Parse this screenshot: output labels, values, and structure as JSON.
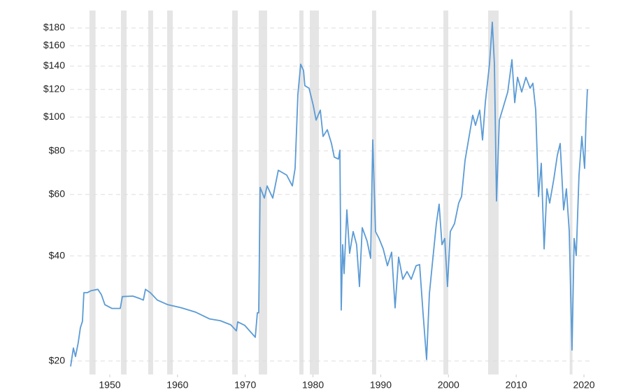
{
  "chart_data": {
    "type": "line",
    "log_y": true,
    "grid": true,
    "band_color": "#e5e5e5",
    "bands": [
      [
        1947.0,
        1947.9
      ],
      [
        1951.65,
        1952.48
      ],
      [
        1955.68,
        1956.4
      ],
      [
        1958.47,
        1959.3
      ],
      [
        1968.07,
        1968.9
      ],
      [
        1971.99,
        1973.23
      ],
      [
        1977.98,
        1978.6
      ],
      [
        1979.53,
        1980.87
      ],
      [
        1988.72,
        1989.33
      ],
      [
        1999.25,
        1999.97
      ],
      [
        2005.85,
        2007.4
      ],
      [
        2017.9,
        2018.3
      ]
    ],
    "xlim": [
      1944.12,
      2021.03
    ],
    "xticks": [
      1950,
      1960,
      1970,
      1980,
      1990,
      2000,
      2010,
      2020
    ],
    "ylim": [
      18.3,
      202
    ],
    "yticks": [
      {
        "value": 20,
        "label": "$20"
      },
      {
        "value": 40,
        "label": "$40"
      },
      {
        "value": 60,
        "label": "$60"
      },
      {
        "value": 80,
        "label": "$80"
      },
      {
        "value": 100,
        "label": "$100"
      },
      {
        "value": 120,
        "label": "$120"
      },
      {
        "value": 140,
        "label": "$140"
      },
      {
        "value": 160,
        "label": "$160"
      },
      {
        "value": 180,
        "label": "$180"
      }
    ],
    "x": [
      1944.22,
      1944.63,
      1944.94,
      1945.35,
      1945.66,
      1945.97,
      1946.18,
      1946.7,
      1947.21,
      1948.24,
      1948.76,
      1949.28,
      1950.31,
      1951.55,
      1951.86,
      1953.41,
      1954.44,
      1954.96,
      1955.27,
      1955.99,
      1957.02,
      1958.57,
      1960.63,
      1962.7,
      1964.76,
      1966.31,
      1967.86,
      1968.69,
      1968.89,
      1969.93,
      1971.48,
      1971.79,
      1971.99,
      1972.2,
      1972.82,
      1973.23,
      1974.06,
      1974.88,
      1976.12,
      1976.95,
      1977.36,
      1977.77,
      1978.18,
      1978.6,
      1978.8,
      1979.42,
      1980.04,
      1980.46,
      1981.08,
      1981.49,
      1982.11,
      1982.73,
      1983.14,
      1983.76,
      1983.97,
      1984.17,
      1984.38,
      1984.59,
      1985.0,
      1985.41,
      1985.93,
      1986.44,
      1986.86,
      1987.27,
      1987.99,
      1988.51,
      1988.82,
      1989.23,
      1989.75,
      1990.37,
      1990.99,
      1991.61,
      1992.12,
      1992.64,
      1993.26,
      1993.88,
      1994.5,
      1995.22,
      1995.74,
      1996.25,
      1996.77,
      1997.18,
      1997.59,
      1998.21,
      1998.62,
      1999.04,
      1999.45,
      1999.86,
      2000.27,
      2000.89,
      2001.51,
      2001.93,
      2002.45,
      2002.96,
      2003.58,
      2003.99,
      2004.61,
      2005.03,
      2005.44,
      2006.06,
      2006.47,
      2006.78,
      2007.09,
      2007.51,
      2008.13,
      2008.75,
      2009.37,
      2009.78,
      2010.2,
      2010.81,
      2011.43,
      2012.05,
      2012.46,
      2012.88,
      2013.29,
      2013.7,
      2014.12,
      2014.53,
      2014.94,
      2015.56,
      2016.07,
      2016.49,
      2017.0,
      2017.41,
      2017.83,
      2018.24,
      2018.55,
      2018.86,
      2019.27,
      2019.69,
      2020.1,
      2020.31,
      2020.51
    ],
    "series": [
      {
        "color": "#5b9bd5",
        "values": [
          19.3,
          21.8,
          20.6,
          22.6,
          24.9,
          26,
          31.4,
          31.4,
          31.8,
          32.1,
          31,
          29,
          28.3,
          28.3,
          30.6,
          30.7,
          30.2,
          29.9,
          32.1,
          31.4,
          29.9,
          29,
          28.4,
          27.6,
          26.4,
          26.1,
          25.4,
          24.4,
          25.9,
          25.3,
          23.4,
          27.5,
          27.5,
          62.9,
          58.6,
          63.5,
          58.6,
          70.4,
          68.2,
          63.5,
          71.3,
          116,
          141.7,
          136,
          123,
          121,
          108,
          98,
          104.7,
          88,
          92,
          84,
          76.8,
          75.8,
          80.4,
          28,
          43.1,
          35.6,
          54.2,
          40.7,
          47,
          43.1,
          32.7,
          48.2,
          44.1,
          39.4,
          86,
          47,
          44.9,
          41.9,
          37.5,
          41,
          28.4,
          39.7,
          34.3,
          36.1,
          34.3,
          37.5,
          37.8,
          27.4,
          20.2,
          31.1,
          37.5,
          49.5,
          56.3,
          43.1,
          44.9,
          32.7,
          47,
          49.5,
          56.7,
          59.2,
          75.2,
          86,
          101.2,
          94.7,
          104.7,
          86,
          110.1,
          142,
          187,
          142,
          57.5,
          98,
          107.5,
          118,
          146,
          110,
          130,
          118,
          130,
          121,
          125,
          104.7,
          59.2,
          73.7,
          41.9,
          62.3,
          56.7,
          66.6,
          77.7,
          84,
          54.2,
          62.3,
          47,
          21.5,
          44.9,
          40.1,
          68.2,
          88,
          71.3,
          98,
          120.2
        ]
      }
    ]
  }
}
